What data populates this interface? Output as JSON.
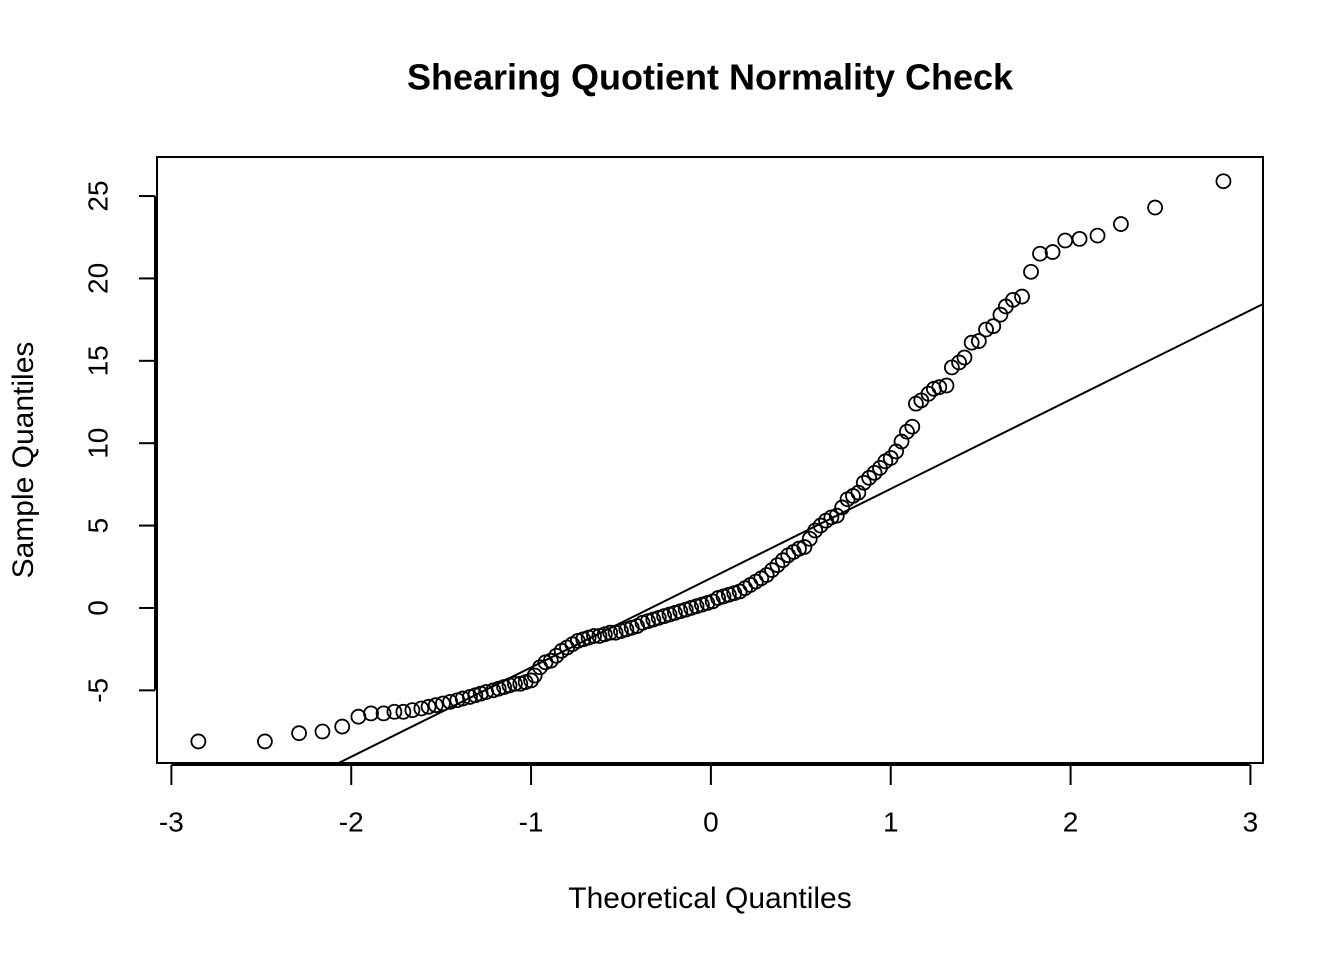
{
  "chart_data": {
    "type": "scatter",
    "title": "Shearing Quotient Normality Check",
    "xlabel": "Theoretical Quantiles",
    "ylabel": "Sample Quantiles",
    "color": "#000000",
    "xlim": [
      -3.08,
      3.07
    ],
    "ylim": [
      -9.41,
      27.37
    ],
    "xticks": [
      -3,
      -2,
      -1,
      0,
      1,
      2,
      3
    ],
    "yticks": [
      -5,
      0,
      5,
      10,
      15,
      20,
      25
    ],
    "qqline": {
      "intercept": 1.81,
      "slope": 5.42
    },
    "x": [
      -2.85,
      -2.48,
      -2.29,
      -2.16,
      -2.05,
      -1.96,
      -1.89,
      -1.82,
      -1.76,
      -1.71,
      -1.66,
      -1.61,
      -1.57,
      -1.53,
      -1.49,
      -1.45,
      -1.41,
      -1.38,
      -1.34,
      -1.31,
      -1.28,
      -1.25,
      -1.21,
      -1.18,
      -1.15,
      -1.12,
      -1.09,
      -1.06,
      -1.03,
      -1.0,
      -0.98,
      -0.95,
      -0.92,
      -0.89,
      -0.86,
      -0.83,
      -0.8,
      -0.77,
      -0.74,
      -0.71,
      -0.68,
      -0.65,
      -0.62,
      -0.59,
      -0.56,
      -0.53,
      -0.5,
      -0.47,
      -0.44,
      -0.41,
      -0.38,
      -0.35,
      -0.32,
      -0.29,
      -0.26,
      -0.23,
      -0.2,
      -0.17,
      -0.14,
      -0.11,
      -0.08,
      -0.05,
      -0.02,
      0.01,
      0.04,
      0.07,
      0.1,
      0.13,
      0.16,
      0.19,
      0.22,
      0.25,
      0.28,
      0.31,
      0.34,
      0.37,
      0.4,
      0.43,
      0.46,
      0.49,
      0.52,
      0.55,
      0.58,
      0.61,
      0.64,
      0.67,
      0.7,
      0.73,
      0.76,
      0.79,
      0.82,
      0.85,
      0.88,
      0.91,
      0.94,
      0.97,
      1.0,
      1.03,
      1.06,
      1.09,
      1.12,
      1.14,
      1.17,
      1.21,
      1.24,
      1.27,
      1.31,
      1.34,
      1.38,
      1.41,
      1.45,
      1.49,
      1.53,
      1.57,
      1.61,
      1.64,
      1.68,
      1.73,
      1.78,
      1.83,
      1.9,
      1.97,
      2.05,
      2.15,
      2.28,
      2.47,
      2.85
    ],
    "values": [
      -8.1,
      -8.1,
      -7.6,
      -7.5,
      -7.2,
      -6.6,
      -6.4,
      -6.4,
      -6.3,
      -6.3,
      -6.2,
      -6.1,
      -6.0,
      -5.9,
      -5.8,
      -5.7,
      -5.6,
      -5.5,
      -5.4,
      -5.3,
      -5.2,
      -5.1,
      -5.0,
      -4.9,
      -4.8,
      -4.7,
      -4.6,
      -4.6,
      -4.5,
      -4.4,
      -4.1,
      -3.6,
      -3.3,
      -3.2,
      -2.9,
      -2.6,
      -2.4,
      -2.2,
      -2.0,
      -1.9,
      -1.8,
      -1.7,
      -1.7,
      -1.6,
      -1.5,
      -1.5,
      -1.4,
      -1.3,
      -1.2,
      -1.1,
      -0.9,
      -0.8,
      -0.7,
      -0.6,
      -0.5,
      -0.4,
      -0.3,
      -0.2,
      -0.1,
      0.0,
      0.1,
      0.2,
      0.3,
      0.4,
      0.6,
      0.7,
      0.8,
      0.9,
      1.0,
      1.2,
      1.4,
      1.6,
      1.8,
      2.0,
      2.3,
      2.6,
      2.9,
      3.2,
      3.4,
      3.6,
      3.7,
      4.2,
      4.7,
      5.0,
      5.3,
      5.5,
      5.6,
      6.1,
      6.6,
      6.8,
      7.0,
      7.6,
      7.9,
      8.2,
      8.5,
      8.9,
      9.1,
      9.5,
      10.1,
      10.7,
      11.0,
      12.4,
      12.6,
      13.0,
      13.3,
      13.4,
      13.5,
      14.6,
      14.9,
      15.2,
      16.1,
      16.2,
      16.9,
      17.1,
      17.8,
      18.3,
      18.7,
      18.9,
      20.4,
      21.5,
      21.6,
      22.3,
      22.4,
      22.6,
      23.3,
      24.3,
      25.9
    ]
  }
}
